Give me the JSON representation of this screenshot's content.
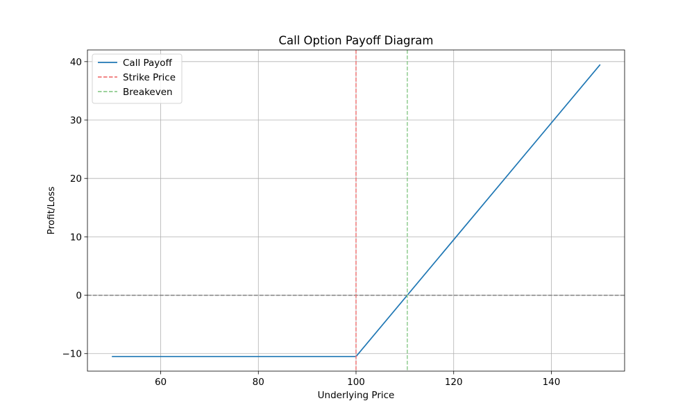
{
  "chart_data": {
    "type": "line",
    "title": "Call Option Payoff Diagram",
    "xlabel": "Underlying Price",
    "ylabel": "Profit/Loss",
    "xlim": [
      45,
      155
    ],
    "ylim": [
      -13,
      42
    ],
    "x_ticks": [
      60,
      80,
      100,
      120,
      140
    ],
    "x_tick_labels": [
      "60",
      "80",
      "100",
      "120",
      "140"
    ],
    "y_ticks": [
      -10,
      0,
      10,
      20,
      30,
      40
    ],
    "y_tick_labels": [
      "−10",
      "0",
      "10",
      "20",
      "30",
      "40"
    ],
    "grid": true,
    "legend_position": "top-left",
    "series": [
      {
        "name": "Call Payoff",
        "style": "solid",
        "color": "#1f77b4",
        "x": [
          50,
          100,
          150
        ],
        "y": [
          -10.5,
          -10.5,
          39.5
        ]
      },
      {
        "name": "Strike Price",
        "style": "dashed",
        "orientation": "vertical",
        "color": "#ef7575",
        "x": 100
      },
      {
        "name": "Breakeven",
        "style": "dashed",
        "orientation": "vertical",
        "color": "#8fcc8f",
        "x": 110.5
      }
    ],
    "reference_lines": [
      {
        "orientation": "horizontal",
        "style": "dashed",
        "color": "#808080",
        "y": 0
      }
    ]
  }
}
